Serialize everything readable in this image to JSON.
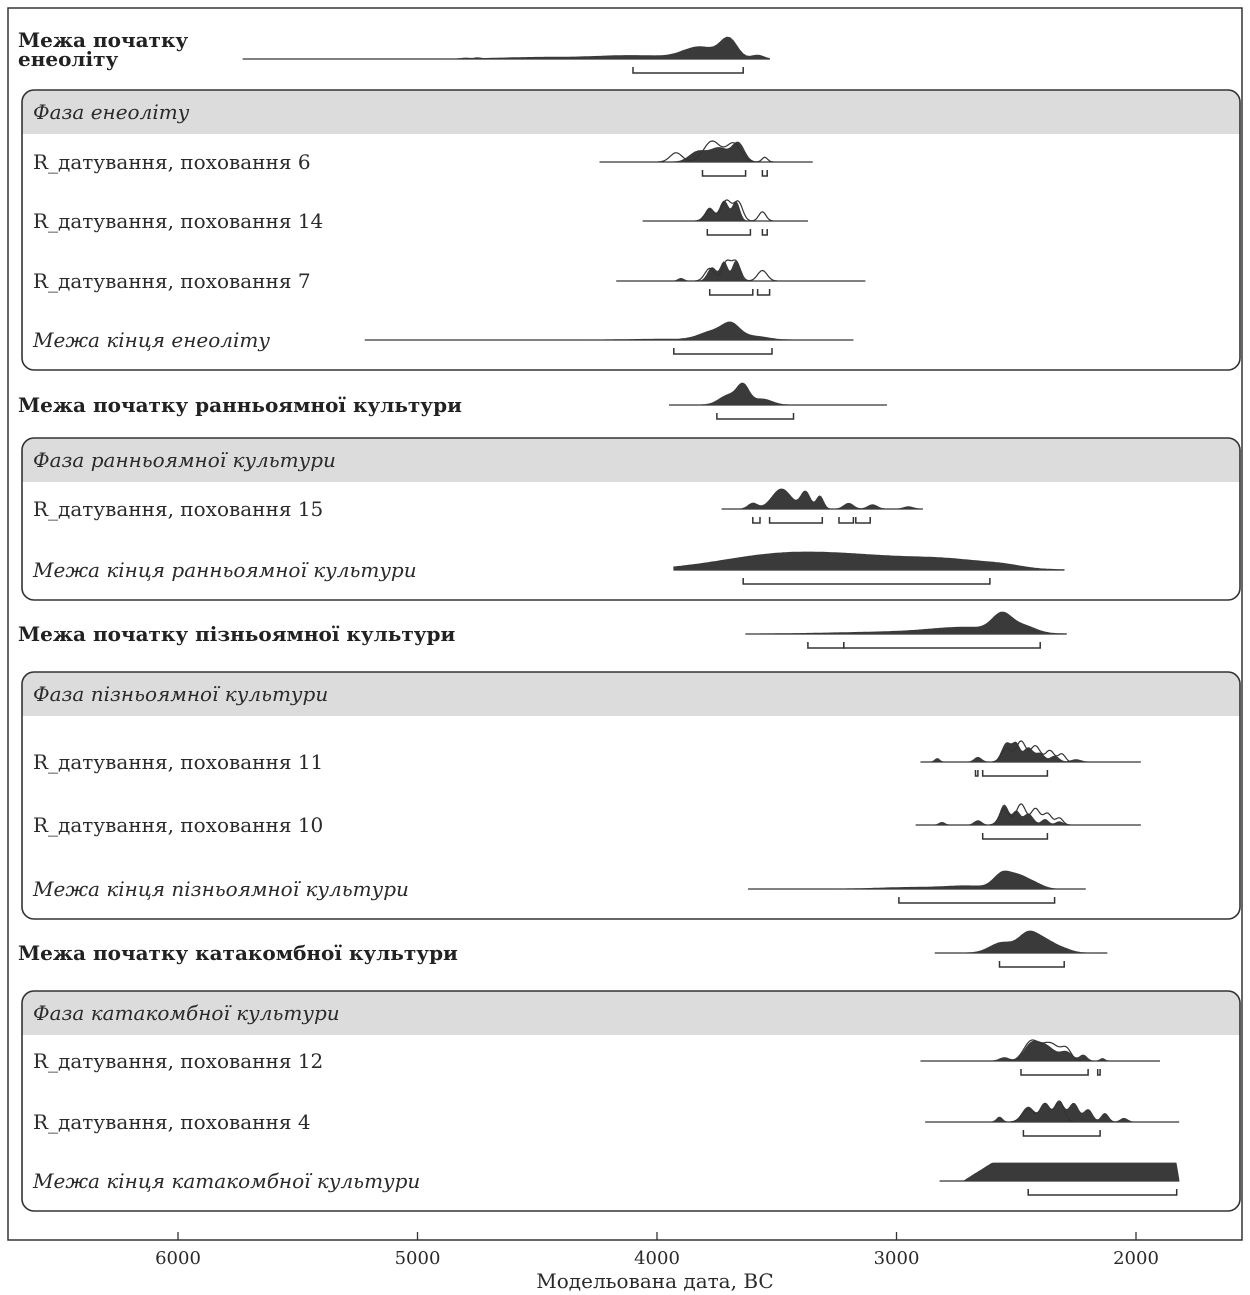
{
  "chart_data": {
    "type": "oxcal-multiplot",
    "xlabel": "Модельована дата, BC",
    "xlim": [
      6700,
      1550
    ],
    "ticks": [
      6000,
      5000,
      4000,
      3000,
      2000
    ],
    "rows": [
      {
        "label": "Межа початку енеоліту",
        "style": "boundary-header",
        "start": 5730,
        "end": 3530,
        "peaks": [
          [
            4800,
            15,
            0.04
          ],
          [
            4750,
            10,
            0.05
          ],
          [
            4500,
            160,
            0.08
          ],
          [
            4100,
            160,
            0.18
          ],
          [
            3820,
            70,
            0.6
          ],
          [
            3700,
            35,
            1.0
          ],
          [
            3580,
            25,
            0.2
          ]
        ],
        "ranges": [
          [
            4100,
            3640
          ]
        ]
      },
      {
        "label": "Фаза енеоліту",
        "style": "phase-header"
      },
      {
        "label": "R_датування, поховання 6",
        "style": "rdate",
        "start": 4240,
        "end": 3350,
        "peaks": [
          [
            3830,
            35,
            0.5
          ],
          [
            3740,
            40,
            0.7
          ],
          [
            3660,
            25,
            0.9
          ]
        ],
        "prior": [
          [
            3920,
            25,
            0.4
          ],
          [
            3770,
            35,
            0.9
          ],
          [
            3680,
            30,
            0.8
          ],
          [
            3550,
            12,
            0.2
          ]
        ],
        "ranges": [
          [
            3810,
            3630
          ],
          [
            3560,
            3540
          ]
        ]
      },
      {
        "label": "R_датування, поховання 14",
        "style": "rdate",
        "start": 4060,
        "end": 3370,
        "peaks": [
          [
            3780,
            18,
            0.55
          ],
          [
            3720,
            18,
            0.85
          ],
          [
            3670,
            15,
            0.8
          ]
        ],
        "prior": [
          [
            3780,
            20,
            0.5
          ],
          [
            3710,
            22,
            0.9
          ],
          [
            3660,
            18,
            0.8
          ],
          [
            3560,
            15,
            0.4
          ]
        ],
        "ranges": [
          [
            3790,
            3610
          ],
          [
            3560,
            3540
          ]
        ]
      },
      {
        "label": "R_датування, поховання 7",
        "style": "rdate",
        "start": 4170,
        "end": 3130,
        "peaks": [
          [
            3900,
            12,
            0.12
          ],
          [
            3770,
            18,
            0.6
          ],
          [
            3720,
            15,
            0.85
          ],
          [
            3670,
            15,
            0.9
          ]
        ],
        "prior": [
          [
            3780,
            20,
            0.6
          ],
          [
            3710,
            18,
            0.9
          ],
          [
            3670,
            18,
            0.9
          ],
          [
            3560,
            20,
            0.5
          ]
        ],
        "ranges": [
          [
            3780,
            3600
          ],
          [
            3580,
            3530
          ]
        ]
      },
      {
        "label": "Межа кінця енеоліту",
        "style": "italic",
        "start": 5220,
        "end": 3180,
        "peaks": [
          [
            4000,
            120,
            0.05
          ],
          [
            3760,
            60,
            0.6
          ],
          [
            3690,
            35,
            0.8
          ],
          [
            3600,
            60,
            0.25
          ]
        ],
        "ranges": [
          [
            3930,
            3520
          ]
        ]
      },
      {
        "label": "Межа початку ранньоямної культури",
        "style": "boundary-header",
        "start": 3950,
        "end": 3040,
        "peaks": [
          [
            3700,
            40,
            0.5
          ],
          [
            3640,
            25,
            0.9
          ],
          [
            3560,
            40,
            0.3
          ]
        ],
        "ranges": [
          [
            3750,
            3430
          ]
        ]
      },
      {
        "label": "Фаза ранньоямної культури",
        "style": "phase-header"
      },
      {
        "label": "R_датування, поховання 15",
        "style": "rdate",
        "start": 3730,
        "end": 2890,
        "peaks": [
          [
            3600,
            20,
            0.2
          ],
          [
            3480,
            40,
            0.7
          ],
          [
            3380,
            20,
            0.6
          ],
          [
            3320,
            15,
            0.45
          ],
          [
            3200,
            20,
            0.2
          ],
          [
            3100,
            20,
            0.15
          ],
          [
            2950,
            20,
            0.08
          ]
        ],
        "ranges": [
          [
            3600,
            3570
          ],
          [
            3530,
            3310
          ],
          [
            3240,
            3180
          ],
          [
            3170,
            3110
          ]
        ]
      },
      {
        "label": "Межа кінця ранньоямної культури",
        "style": "italic",
        "start": 3930,
        "end": 2300,
        "peaks": [
          [
            3500,
            250,
            1.0
          ],
          [
            3100,
            250,
            0.75
          ],
          [
            2750,
            170,
            0.5
          ],
          [
            2550,
            80,
            0.15
          ]
        ],
        "ranges": [
          [
            3640,
            2610
          ]
        ]
      },
      {
        "label": "Межа початку пізньоямної культури",
        "style": "boundary-header",
        "start": 3630,
        "end": 2290,
        "peaks": [
          [
            3000,
            250,
            0.12
          ],
          [
            2700,
            150,
            0.35
          ],
          [
            2560,
            40,
            1.0
          ],
          [
            2470,
            50,
            0.4
          ]
        ],
        "ranges": [
          [
            3370,
            3220
          ],
          [
            3220,
            2400
          ]
        ]
      },
      {
        "label": "Фаза пізньоямної культури",
        "style": "phase-header"
      },
      {
        "label": "R_датування, поховання 11",
        "style": "rdate",
        "start": 2900,
        "end": 1980,
        "peaks": [
          [
            2830,
            10,
            0.15
          ],
          [
            2660,
            15,
            0.2
          ],
          [
            2540,
            20,
            0.8
          ],
          [
            2500,
            15,
            0.7
          ],
          [
            2450,
            20,
            0.6
          ],
          [
            2400,
            18,
            0.35
          ],
          [
            2340,
            18,
            0.25
          ],
          [
            2250,
            20,
            0.1
          ]
        ],
        "prior": [
          [
            2540,
            20,
            0.6
          ],
          [
            2480,
            20,
            0.9
          ],
          [
            2420,
            20,
            0.7
          ],
          [
            2360,
            18,
            0.5
          ],
          [
            2310,
            15,
            0.35
          ]
        ],
        "ranges": [
          [
            2670,
            2660
          ],
          [
            2640,
            2370
          ]
        ]
      },
      {
        "label": "R_датування, поховання 10",
        "style": "rdate",
        "start": 2920,
        "end": 1980,
        "peaks": [
          [
            2810,
            12,
            0.12
          ],
          [
            2660,
            15,
            0.2
          ],
          [
            2550,
            18,
            0.9
          ],
          [
            2500,
            15,
            0.6
          ],
          [
            2450,
            20,
            0.5
          ],
          [
            2380,
            15,
            0.25
          ],
          [
            2320,
            15,
            0.15
          ]
        ],
        "prior": [
          [
            2550,
            20,
            0.7
          ],
          [
            2480,
            20,
            0.9
          ],
          [
            2420,
            18,
            0.7
          ],
          [
            2370,
            18,
            0.5
          ],
          [
            2320,
            15,
            0.3
          ]
        ],
        "ranges": [
          [
            2640,
            2370
          ]
        ]
      },
      {
        "label": "Межа кінця пізньоямної культури",
        "style": "italic",
        "start": 3620,
        "end": 2210,
        "peaks": [
          [
            2950,
            120,
            0.1
          ],
          [
            2700,
            100,
            0.2
          ],
          [
            2560,
            35,
            0.9
          ],
          [
            2490,
            40,
            0.8
          ],
          [
            2420,
            35,
            0.3
          ]
        ],
        "ranges": [
          [
            2990,
            2340
          ]
        ]
      },
      {
        "label": "Межа початку катакомбної культури",
        "style": "boundary-header",
        "start": 2840,
        "end": 2120,
        "peaks": [
          [
            2560,
            50,
            0.5
          ],
          [
            2450,
            40,
            0.9
          ],
          [
            2380,
            40,
            0.5
          ],
          [
            2310,
            40,
            0.2
          ]
        ],
        "ranges": [
          [
            2570,
            2300
          ]
        ]
      },
      {
        "label": "Фаза катакомбної культури",
        "style": "phase-header"
      },
      {
        "label": "R_датування, поховання 12",
        "style": "rdate",
        "start": 2900,
        "end": 1900,
        "peaks": [
          [
            2550,
            20,
            0.2
          ],
          [
            2440,
            30,
            0.8
          ],
          [
            2380,
            40,
            0.9
          ],
          [
            2290,
            25,
            0.5
          ],
          [
            2220,
            15,
            0.35
          ],
          [
            2140,
            10,
            0.15
          ]
        ],
        "prior": [
          [
            2440,
            30,
            0.9
          ],
          [
            2360,
            40,
            0.9
          ],
          [
            2290,
            20,
            0.5
          ]
        ],
        "ranges": [
          [
            2480,
            2200
          ],
          [
            2160,
            2150
          ]
        ]
      },
      {
        "label": "R_датування, поховання 4",
        "style": "rdate",
        "start": 2880,
        "end": 1820,
        "peaks": [
          [
            2570,
            12,
            0.2
          ],
          [
            2450,
            25,
            0.6
          ],
          [
            2380,
            20,
            0.7
          ],
          [
            2320,
            20,
            0.8
          ],
          [
            2260,
            20,
            0.75
          ],
          [
            2200,
            18,
            0.5
          ],
          [
            2130,
            15,
            0.35
          ],
          [
            2050,
            15,
            0.15
          ]
        ],
        "prior": [
          [
            2450,
            25,
            0.5
          ],
          [
            2380,
            20,
            0.7
          ],
          [
            2320,
            20,
            0.8
          ]
        ],
        "ranges": [
          [
            2470,
            2150
          ]
        ]
      },
      {
        "label": "Межа кінця катакомбної культури",
        "style": "italic",
        "start": 2820,
        "end": 1820,
        "plateau": [
          2600,
          1830
        ],
        "ranges": [
          [
            2450,
            1830
          ]
        ]
      }
    ]
  }
}
